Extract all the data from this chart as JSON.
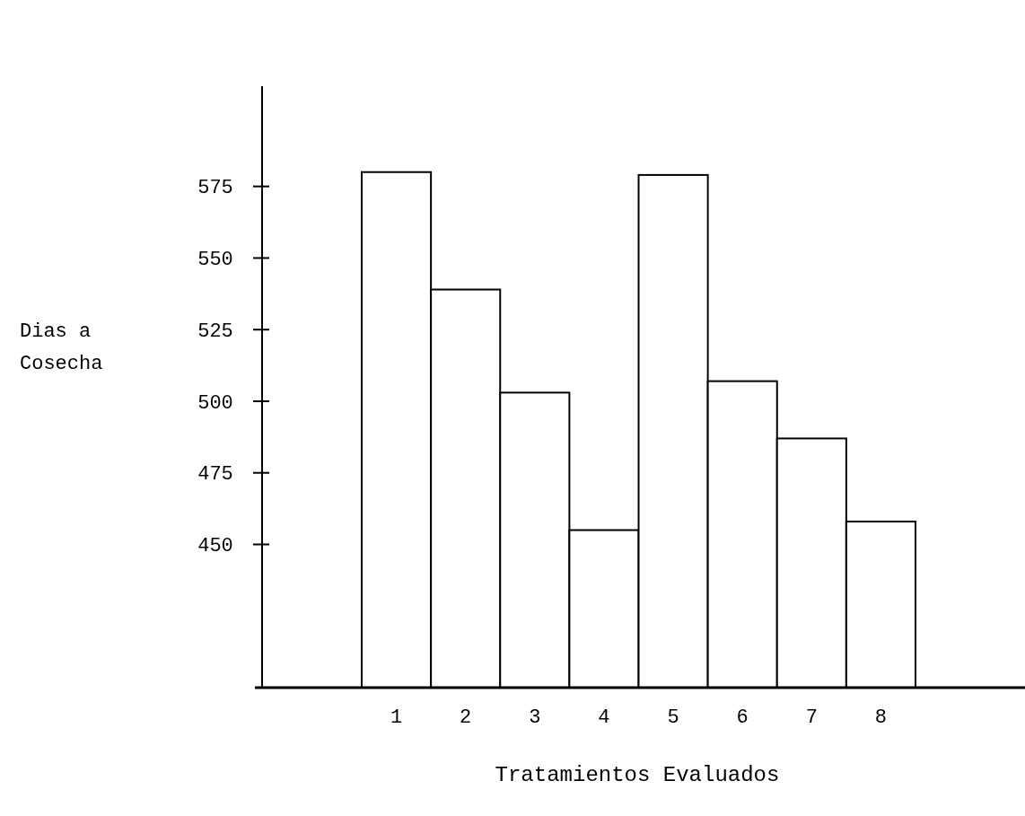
{
  "chart_data": {
    "type": "bar",
    "xlabel": "Tratamientos Evaluados",
    "ylabel": "Dias a Cosecha",
    "categories": [
      "1",
      "2",
      "3",
      "4",
      "5",
      "6",
      "7",
      "8"
    ],
    "values": [
      580,
      539,
      503,
      455,
      579,
      507,
      487,
      458
    ],
    "color": "#ffffff",
    "ylim": [
      400,
      610
    ],
    "yticks": [
      450,
      475,
      500,
      525,
      550,
      575
    ],
    "grid": false
  }
}
